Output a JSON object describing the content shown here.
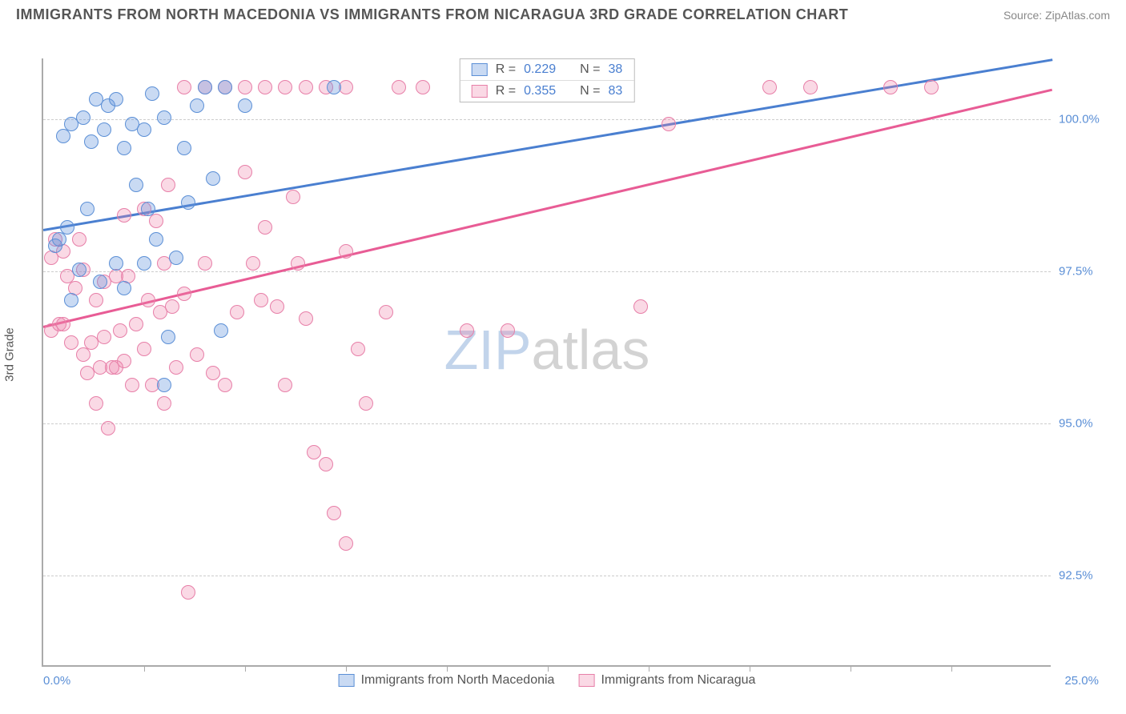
{
  "title": "IMMIGRANTS FROM NORTH MACEDONIA VS IMMIGRANTS FROM NICARAGUA 3RD GRADE CORRELATION CHART",
  "source": "Source: ZipAtlas.com",
  "chart": {
    "type": "scatter",
    "xlim": [
      0,
      25
    ],
    "ylim": [
      91,
      101
    ],
    "xtick_left": "0.0%",
    "xtick_right": "25.0%",
    "ytick_labels": [
      "92.5%",
      "95.0%",
      "97.5%",
      "100.0%"
    ],
    "ytick_values": [
      92.5,
      95.0,
      97.5,
      100.0
    ],
    "xtick_positions": [
      0,
      2.5,
      5,
      7.5,
      10,
      12.5,
      15,
      17.5,
      20,
      22.5,
      25
    ],
    "ylabel": "3rd Grade",
    "grid_color": "#cccccc",
    "axis_color": "#aaaaaa",
    "background": "#ffffff",
    "point_radius": 9,
    "stats": [
      {
        "color": "b",
        "r_label": "R =",
        "r": "0.229",
        "n_label": "N =",
        "n": "38"
      },
      {
        "color": "p",
        "r_label": "R =",
        "r": "0.355",
        "n_label": "N =",
        "n": "83"
      }
    ],
    "series": [
      {
        "name": "Immigrants from North Macedonia",
        "color_key": "b",
        "fill": "rgba(100,150,220,0.35)",
        "stroke": "#5b8fd6",
        "trend": {
          "x1": 0,
          "y1": 98.2,
          "x2": 25,
          "y2": 101.0
        },
        "points": [
          [
            0.3,
            97.9
          ],
          [
            0.4,
            98.0
          ],
          [
            0.5,
            99.7
          ],
          [
            0.6,
            98.2
          ],
          [
            0.7,
            97.0
          ],
          [
            0.7,
            99.9
          ],
          [
            0.9,
            97.5
          ],
          [
            1.0,
            100.0
          ],
          [
            1.1,
            98.5
          ],
          [
            1.2,
            99.6
          ],
          [
            1.3,
            100.3
          ],
          [
            1.4,
            97.3
          ],
          [
            1.5,
            99.8
          ],
          [
            1.6,
            100.2
          ],
          [
            1.8,
            100.3
          ],
          [
            1.8,
            97.6
          ],
          [
            2.0,
            99.5
          ],
          [
            2.0,
            97.2
          ],
          [
            2.2,
            99.9
          ],
          [
            2.3,
            98.9
          ],
          [
            2.5,
            99.8
          ],
          [
            2.5,
            97.6
          ],
          [
            2.6,
            98.5
          ],
          [
            2.7,
            100.4
          ],
          [
            2.8,
            98.0
          ],
          [
            3.0,
            100.0
          ],
          [
            3.0,
            95.6
          ],
          [
            3.1,
            96.4
          ],
          [
            3.3,
            97.7
          ],
          [
            3.5,
            99.5
          ],
          [
            3.6,
            98.6
          ],
          [
            3.8,
            100.2
          ],
          [
            4.0,
            100.5
          ],
          [
            4.2,
            99.0
          ],
          [
            4.4,
            96.5
          ],
          [
            4.5,
            100.5
          ],
          [
            5.0,
            100.2
          ],
          [
            7.2,
            100.5
          ]
        ]
      },
      {
        "name": "Immigrants from Nicaragua",
        "color_key": "p",
        "fill": "rgba(240,130,170,0.30)",
        "stroke": "#e77fa8",
        "trend": {
          "x1": 0,
          "y1": 96.6,
          "x2": 25,
          "y2": 100.5
        },
        "points": [
          [
            0.2,
            96.5
          ],
          [
            0.2,
            97.7
          ],
          [
            0.3,
            98.0
          ],
          [
            0.4,
            96.6
          ],
          [
            0.5,
            96.6
          ],
          [
            0.5,
            97.8
          ],
          [
            0.6,
            97.4
          ],
          [
            0.7,
            96.3
          ],
          [
            0.8,
            97.2
          ],
          [
            0.9,
            98.0
          ],
          [
            1.0,
            96.1
          ],
          [
            1.0,
            97.5
          ],
          [
            1.1,
            95.8
          ],
          [
            1.2,
            96.3
          ],
          [
            1.3,
            97.0
          ],
          [
            1.3,
            95.3
          ],
          [
            1.4,
            95.9
          ],
          [
            1.5,
            97.3
          ],
          [
            1.5,
            96.4
          ],
          [
            1.6,
            94.9
          ],
          [
            1.7,
            95.9
          ],
          [
            1.8,
            95.9
          ],
          [
            1.8,
            97.4
          ],
          [
            1.9,
            96.5
          ],
          [
            2.0,
            96.0
          ],
          [
            2.0,
            98.4
          ],
          [
            2.1,
            97.4
          ],
          [
            2.2,
            95.6
          ],
          [
            2.3,
            96.6
          ],
          [
            2.5,
            98.5
          ],
          [
            2.5,
            96.2
          ],
          [
            2.6,
            97.0
          ],
          [
            2.7,
            95.6
          ],
          [
            2.8,
            98.3
          ],
          [
            2.9,
            96.8
          ],
          [
            3.0,
            95.3
          ],
          [
            3.0,
            97.6
          ],
          [
            3.1,
            98.9
          ],
          [
            3.2,
            96.9
          ],
          [
            3.3,
            95.9
          ],
          [
            3.5,
            100.5
          ],
          [
            3.5,
            97.1
          ],
          [
            3.6,
            92.2
          ],
          [
            3.8,
            96.1
          ],
          [
            4.0,
            97.6
          ],
          [
            4.0,
            100.5
          ],
          [
            4.2,
            95.8
          ],
          [
            4.5,
            95.6
          ],
          [
            4.5,
            100.5
          ],
          [
            4.8,
            96.8
          ],
          [
            5.0,
            99.1
          ],
          [
            5.0,
            100.5
          ],
          [
            5.2,
            97.6
          ],
          [
            5.4,
            97.0
          ],
          [
            5.5,
            100.5
          ],
          [
            5.5,
            98.2
          ],
          [
            5.8,
            96.9
          ],
          [
            6.0,
            95.6
          ],
          [
            6.0,
            100.5
          ],
          [
            6.2,
            98.7
          ],
          [
            6.3,
            97.6
          ],
          [
            6.5,
            100.5
          ],
          [
            6.5,
            96.7
          ],
          [
            6.7,
            94.5
          ],
          [
            7.0,
            100.5
          ],
          [
            7.0,
            94.3
          ],
          [
            7.2,
            93.5
          ],
          [
            7.5,
            97.8
          ],
          [
            7.5,
            93.0
          ],
          [
            7.5,
            100.5
          ],
          [
            7.8,
            96.2
          ],
          [
            8.0,
            95.3
          ],
          [
            8.5,
            96.8
          ],
          [
            8.8,
            100.5
          ],
          [
            9.4,
            100.5
          ],
          [
            10.5,
            96.5
          ],
          [
            11.5,
            96.5
          ],
          [
            14.8,
            96.9
          ],
          [
            15.5,
            99.9
          ],
          [
            18.0,
            100.5
          ],
          [
            19.0,
            100.5
          ],
          [
            21.0,
            100.5
          ],
          [
            22.0,
            100.5
          ]
        ]
      }
    ],
    "legend": [
      {
        "key": "b",
        "label": "Immigrants from North Macedonia"
      },
      {
        "key": "p",
        "label": "Immigrants from Nicaragua"
      }
    ],
    "watermark": {
      "part1": "ZIP",
      "part2": "atlas"
    }
  }
}
